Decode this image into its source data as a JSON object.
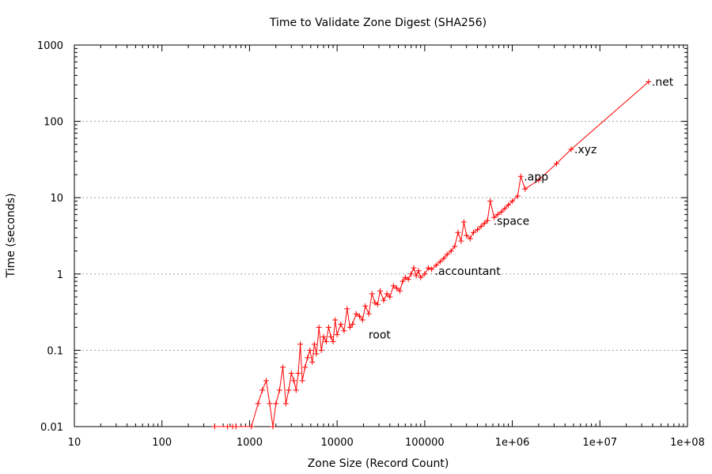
{
  "chart_data": {
    "type": "line",
    "title": "Time to Validate Zone Digest (SHA256)",
    "xlabel": "Zone Size (Record Count)",
    "ylabel": "Time (seconds)",
    "xscale": "log",
    "yscale": "log",
    "xlim": [
      10,
      100000000
    ],
    "ylim": [
      0.01,
      1000
    ],
    "x_ticks": [
      "10",
      "100",
      "1000",
      "10000",
      "100000",
      "1e+06",
      "1e+07",
      "1e+08"
    ],
    "y_ticks": [
      "0.01",
      "0.1",
      "1",
      "10",
      "100",
      "1000"
    ],
    "grid": "horizontal dotted",
    "color": "#ff0000",
    "marker": "+",
    "series": [
      {
        "x": [
          400,
          560,
          640,
          700,
          1050,
          1250,
          1400,
          1550,
          1700,
          1850,
          2000,
          2200,
          2400,
          2600,
          2800,
          3000,
          3200,
          3400,
          3600,
          3800,
          4000,
          4300,
          4600,
          4900,
          5200,
          5500,
          5800,
          6200,
          6600,
          7000,
          7500,
          8000,
          8500,
          9000,
          9500,
          10000,
          11000,
          12000,
          13000,
          14000,
          15000,
          16500,
          18000,
          19500,
          21000,
          23000,
          25000,
          27000,
          29000,
          31000,
          34000,
          37000,
          40000,
          44000,
          48000,
          52000,
          56000,
          60000,
          65000,
          70000,
          75000,
          80000,
          85000,
          90000,
          100000,
          110000,
          120000,
          135000,
          150000,
          165000,
          180000,
          200000,
          220000,
          240000,
          260000,
          280000,
          300000,
          330000,
          360000,
          400000,
          440000,
          480000,
          520000,
          560000,
          620000,
          680000,
          750000,
          820000,
          900000,
          1000000,
          1150000,
          1250000,
          1400000,
          2000000,
          3200000,
          4700000,
          36000000
        ],
        "y": [
          0.01,
          0.01,
          0.01,
          0.01,
          0.01,
          0.02,
          0.03,
          0.04,
          0.02,
          0.01,
          0.02,
          0.03,
          0.06,
          0.02,
          0.03,
          0.05,
          0.04,
          0.03,
          0.05,
          0.12,
          0.04,
          0.06,
          0.08,
          0.1,
          0.07,
          0.12,
          0.09,
          0.2,
          0.1,
          0.15,
          0.13,
          0.2,
          0.15,
          0.13,
          0.25,
          0.16,
          0.22,
          0.18,
          0.35,
          0.2,
          0.22,
          0.3,
          0.28,
          0.25,
          0.38,
          0.3,
          0.55,
          0.42,
          0.4,
          0.6,
          0.45,
          0.55,
          0.5,
          0.7,
          0.65,
          0.6,
          0.8,
          0.9,
          0.85,
          1.0,
          1.2,
          0.95,
          1.1,
          0.9,
          1.0,
          1.2,
          1.15,
          1.3,
          1.45,
          1.6,
          1.8,
          2.0,
          2.3,
          3.5,
          2.7,
          4.8,
          3.2,
          2.9,
          3.5,
          3.8,
          4.2,
          4.6,
          5.0,
          9.0,
          5.5,
          6.0,
          6.5,
          7.2,
          8.0,
          9.0,
          10.5,
          19.0,
          13.0,
          17.0,
          28.0,
          43.0,
          330.0
        ]
      }
    ],
    "annotations": [
      {
        "text": "root",
        "x": 21000,
        "y": 0.16
      },
      {
        "text": ".accountant",
        "x": 120000,
        "y": 1.1
      },
      {
        "text": ".space",
        "x": 560000,
        "y": 5.0
      },
      {
        "text": ".app",
        "x": 1250000,
        "y": 19.0
      },
      {
        "text": ".xyz",
        "x": 4700000,
        "y": 43.0
      },
      {
        "text": ".net",
        "x": 36000000,
        "y": 330.0
      }
    ]
  }
}
